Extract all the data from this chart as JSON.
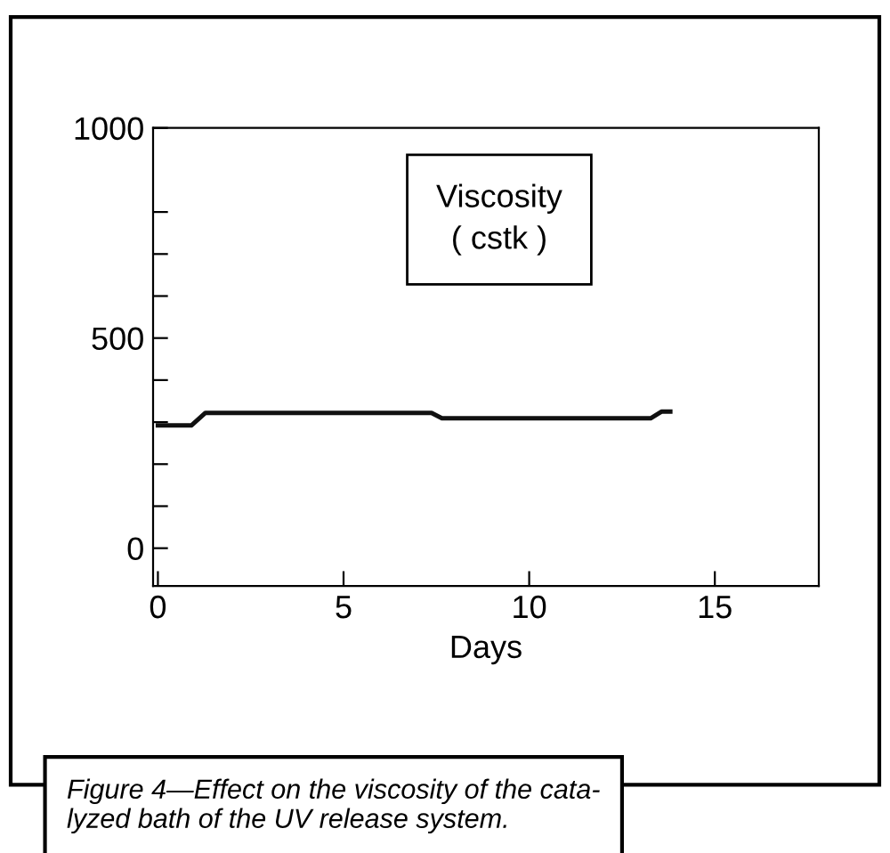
{
  "chart_data": {
    "type": "line",
    "xlabel": "Days",
    "x": [
      0,
      0.9,
      1.28,
      7.37,
      7.65,
      13.27,
      13.56,
      13.8
    ],
    "series": [
      {
        "color": "#111111",
        "values": [
          292,
          292,
          322,
          322,
          309,
          309,
          325,
          325
        ]
      }
    ],
    "xlim": [
      -0.13,
      17.8
    ],
    "xticks": [
      0,
      5,
      10,
      15
    ],
    "ylim": [
      -90,
      1000
    ],
    "yticks": [
      0,
      {
        "value": 100,
        "label": null
      },
      {
        "value": 200,
        "label": null
      },
      {
        "value": 300,
        "label": null
      },
      {
        "value": 400,
        "label": null
      },
      500,
      {
        "value": 600,
        "label": null
      },
      {
        "value": 700,
        "label": null
      },
      {
        "value": 800,
        "label": null
      },
      1000
    ],
    "grid": false,
    "legend": false,
    "marker": "none",
    "line_style": "solid",
    "annotations": [
      "Viscosity\n( cstk )",
      "Figure 4—Effect on the viscosity of the cata-\nlyzed bath of the UV release system."
    ]
  }
}
